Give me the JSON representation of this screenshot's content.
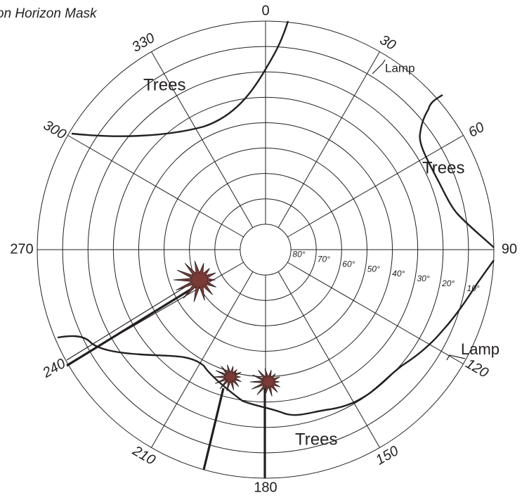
{
  "title": "on Horizon Mask",
  "compass_labels": [
    "0",
    "30",
    "60",
    "90",
    "120",
    "150",
    "180",
    "210",
    "240",
    "270",
    "300",
    "330"
  ],
  "ring_labels": [
    "80°",
    "70°",
    "60°",
    "50°",
    "40°",
    "30°",
    "20°",
    "10°"
  ],
  "annotations": [
    {
      "text": "Trees"
    },
    {
      "text": "Lamp"
    },
    {
      "text": "Trees"
    },
    {
      "text": "Lamp"
    },
    {
      "text": "Trees"
    }
  ]
}
